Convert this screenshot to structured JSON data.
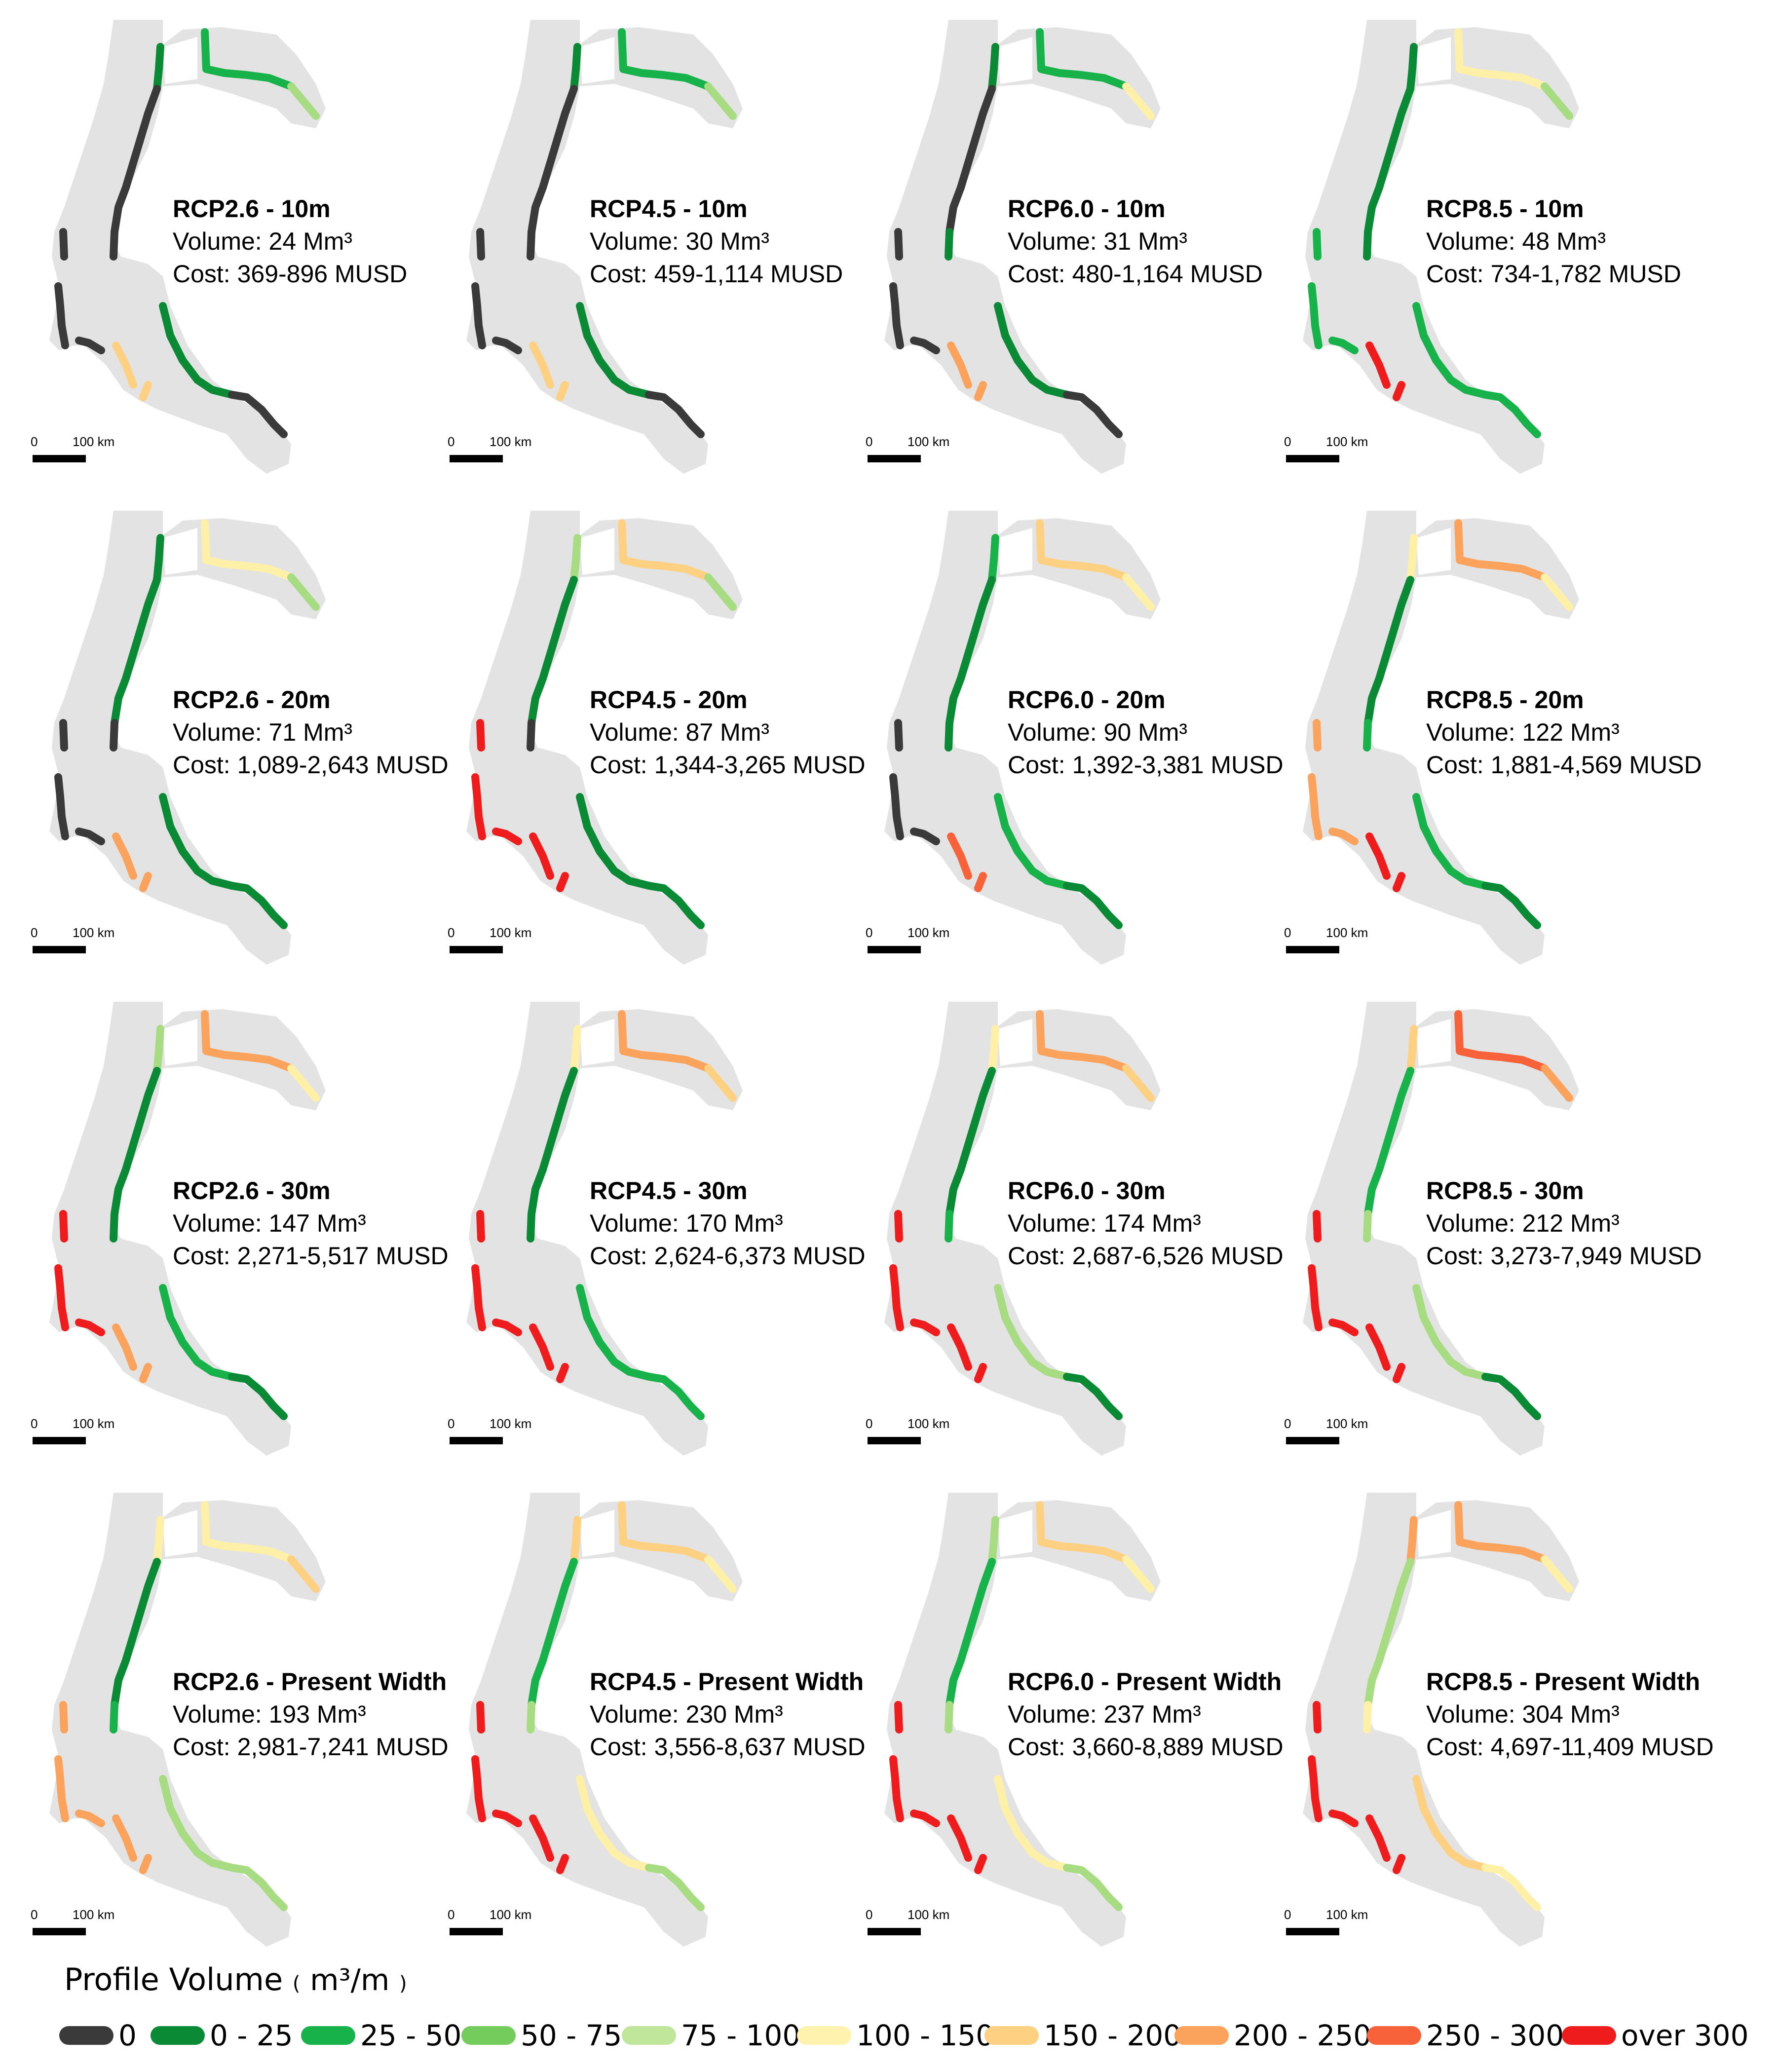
{
  "legend": {
    "title": "Profile Volume",
    "unit": "m³/m",
    "classes": [
      {
        "label": "0",
        "color": "#3a3a3a"
      },
      {
        "label": "0 - 25",
        "color": "#0b8a35"
      },
      {
        "label": "25 - 50",
        "color": "#17b24a"
      },
      {
        "label": "50 - 75",
        "color": "#73cc5b"
      },
      {
        "label": "75 - 100",
        "color": "#bfe69a"
      },
      {
        "label": "100 - 150",
        "color": "#fff2ae"
      },
      {
        "label": "150 - 200",
        "color": "#fdd082"
      },
      {
        "label": "200 - 250",
        "color": "#fba35c"
      },
      {
        "label": "250 - 300",
        "color": "#f8623a"
      },
      {
        "label": "over 300",
        "color": "#ee1c1c"
      }
    ]
  },
  "scalebar": {
    "zero": "0",
    "distance": "100 km"
  },
  "rows": [
    {
      "width": "10m",
      "panels": [
        {
          "title": "RCP2.6 - 10m",
          "volume": "Volume:  24 Mm³",
          "cost": "Cost:  369-896  MUSD"
        },
        {
          "title": "RCP4.5 - 10m",
          "volume": "Volume:  30 Mm³",
          "cost": "Cost:  459-1,114  MUSD"
        },
        {
          "title": "RCP6.0 - 10m",
          "volume": "Volume:  31 Mm³",
          "cost": "Cost:  480-1,164  MUSD"
        },
        {
          "title": "RCP8.5 - 10m",
          "volume": "Volume:  48 Mm³",
          "cost": "Cost:  734-1,782  MUSD"
        }
      ]
    },
    {
      "width": "20m",
      "panels": [
        {
          "title": "RCP2.6 - 20m",
          "volume": "Volume:  71 Mm³",
          "cost": "Cost:  1,089-2,643   MUSD"
        },
        {
          "title": "RCP4.5 - 20m",
          "volume": "Volume:  87 Mm³",
          "cost": "Cost:  1,344-3,265   MUSD"
        },
        {
          "title": "RCP6.0 - 20m",
          "volume": "Volume:  90 Mm³",
          "cost": "Cost:  1,392-3,381   MUSD"
        },
        {
          "title": "RCP8.5 - 20m",
          "volume": "Volume:  122 Mm³",
          "cost": "Cost:  1,881-4,569   MUSD"
        }
      ]
    },
    {
      "width": "30m",
      "panels": [
        {
          "title": "RCP2.6 - 30m",
          "volume": "Volume:  147 Mm³",
          "cost": "Cost:  2,271-5,517   MUSD"
        },
        {
          "title": "RCP4.5 - 30m",
          "volume": "Volume:  170 Mm³",
          "cost": "Cost:  2,624-6,373   MUSD"
        },
        {
          "title": "RCP6.0 - 30m",
          "volume": "Volume:  174 Mm³",
          "cost": "Cost:  2,687-6,526   MUSD"
        },
        {
          "title": "RCP8.5 - 30m",
          "volume": "Volume:  212 Mm³",
          "cost": "Cost:  3,273-7,949   MUSD"
        }
      ]
    },
    {
      "width": "Present Width",
      "panels": [
        {
          "title": "RCP2.6 - Present  Width",
          "volume": "Volume:  193 Mm³",
          "cost": "Cost:  2,981-7,241   MUSD"
        },
        {
          "title": "RCP4.5 - Present  Width",
          "volume": "Volume:  230 Mm³",
          "cost": "Cost:  3,556-8,637   MUSD"
        },
        {
          "title": "RCP6.0 - Present  Width",
          "volume": "Volume:  237 Mm³",
          "cost": "Cost:  3,660-8,889   MUSD"
        },
        {
          "title": "RCP8.5 - Present  Width",
          "volume": "Volume:  304 Mm³",
          "cost": "Cost:  4,697-11,409   MUSD"
        }
      ]
    }
  ],
  "coast_classes": [
    [
      {
        "north_bay": "green_dark",
        "north_east": "green_mid",
        "ne_tail": "green_light",
        "west_upper": "black",
        "west_mid": "black",
        "sw_islands": "black",
        "south_gulf": "orange_light",
        "east_coast": "green_dark",
        "se_tail": "black"
      },
      {
        "north_bay": "green_dark",
        "north_east": "green_mid",
        "ne_tail": "green_light",
        "west_upper": "black",
        "west_mid": "black",
        "sw_islands": "black",
        "south_gulf": "orange_light",
        "east_coast": "green_dark",
        "se_tail": "black"
      },
      {
        "north_bay": "green_dark",
        "north_east": "green_mid",
        "ne_tail": "yellow",
        "west_upper": "black",
        "west_mid": "green_dark",
        "sw_islands": "black",
        "south_gulf": "orange",
        "east_coast": "green_dark",
        "se_tail": "black"
      },
      {
        "north_bay": "green_dark",
        "north_east": "yellow",
        "ne_tail": "green_light",
        "west_upper": "green_dark",
        "west_mid": "green_dark",
        "sw_islands": "green_mid",
        "south_gulf": "red",
        "east_coast": "green_mid",
        "se_tail": "green_mid"
      }
    ],
    [
      {
        "north_bay": "green_dark",
        "north_east": "yellow",
        "ne_tail": "green_light",
        "west_upper": "green_dark",
        "west_mid": "black",
        "sw_islands": "black",
        "south_gulf": "orange",
        "east_coast": "green_dark",
        "se_tail": "green_dark"
      },
      {
        "north_bay": "green_light",
        "north_east": "orange_light",
        "ne_tail": "green_light",
        "west_upper": "green_dark",
        "west_mid": "black",
        "sw_islands": "red",
        "south_gulf": "red",
        "east_coast": "green_dark",
        "se_tail": "green_dark"
      },
      {
        "north_bay": "green_mid",
        "north_east": "orange_light",
        "ne_tail": "yellow",
        "west_upper": "green_dark",
        "west_mid": "green_dark",
        "sw_islands": "black",
        "south_gulf": "red_orange",
        "east_coast": "green_mid",
        "se_tail": "green_dark"
      },
      {
        "north_bay": "yellow",
        "north_east": "orange",
        "ne_tail": "yellow",
        "west_upper": "green_dark",
        "west_mid": "green_mid",
        "sw_islands": "orange",
        "south_gulf": "red",
        "east_coast": "green_mid",
        "se_tail": "green_dark"
      }
    ],
    [
      {
        "north_bay": "green_light",
        "north_east": "orange",
        "ne_tail": "yellow",
        "west_upper": "green_dark",
        "west_mid": "green_dark",
        "sw_islands": "red",
        "south_gulf": "orange",
        "east_coast": "green_mid",
        "se_tail": "green_dark"
      },
      {
        "north_bay": "yellow",
        "north_east": "orange",
        "ne_tail": "orange_light",
        "west_upper": "green_dark",
        "west_mid": "green_dark",
        "sw_islands": "red",
        "south_gulf": "red",
        "east_coast": "green_mid",
        "se_tail": "green_mid"
      },
      {
        "north_bay": "yellow",
        "north_east": "orange",
        "ne_tail": "orange_light",
        "west_upper": "green_dark",
        "west_mid": "green_mid",
        "sw_islands": "red",
        "south_gulf": "red",
        "east_coast": "green_light",
        "se_tail": "green_dark"
      },
      {
        "north_bay": "orange_light",
        "north_east": "red_orange",
        "ne_tail": "orange",
        "west_upper": "green_mid",
        "west_mid": "green_light",
        "sw_islands": "red",
        "south_gulf": "red",
        "east_coast": "green_light",
        "se_tail": "green_dark"
      }
    ],
    [
      {
        "north_bay": "yellow",
        "north_east": "yellow",
        "ne_tail": "orange_light",
        "west_upper": "green_dark",
        "west_mid": "green_mid",
        "sw_islands": "orange",
        "south_gulf": "orange",
        "east_coast": "green_light",
        "se_tail": "green_light"
      },
      {
        "north_bay": "orange_light",
        "north_east": "orange_light",
        "ne_tail": "yellow",
        "west_upper": "green_mid",
        "west_mid": "green_light",
        "sw_islands": "red",
        "south_gulf": "red",
        "east_coast": "yellow",
        "se_tail": "green_light"
      },
      {
        "north_bay": "green_light",
        "north_east": "orange_light",
        "ne_tail": "yellow",
        "west_upper": "green_mid",
        "west_mid": "green_light",
        "sw_islands": "red",
        "south_gulf": "red",
        "east_coast": "yellow",
        "se_tail": "green_light"
      },
      {
        "north_bay": "orange",
        "north_east": "orange",
        "ne_tail": "yellow",
        "west_upper": "green_light",
        "west_mid": "yellow",
        "sw_islands": "red",
        "south_gulf": "red",
        "east_coast": "orange_light",
        "se_tail": "yellow"
      }
    ]
  ]
}
